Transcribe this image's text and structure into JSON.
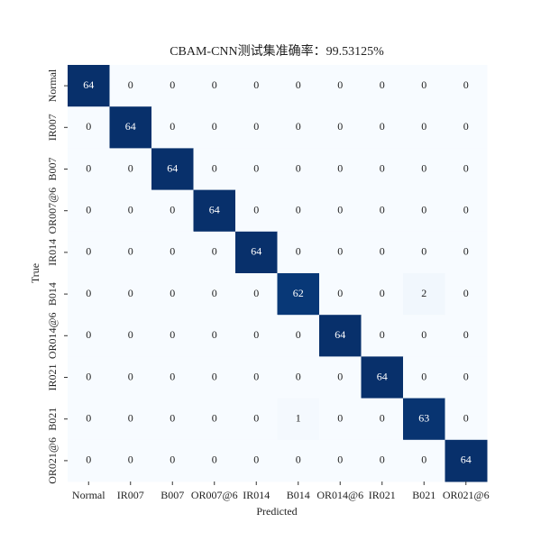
{
  "chart_data": {
    "type": "heatmap",
    "title": "CBAM-CNN测试集准确率：99.53125%",
    "x_label": "Predicted",
    "y_label": "True",
    "categories": [
      "Normal",
      "IR007",
      "B007",
      "OR007@6",
      "IR014",
      "B014",
      "OR014@6",
      "IR021",
      "B021",
      "OR021@6"
    ],
    "y_categories": [
      "Normal",
      "IR007",
      "B007",
      "OR007@6",
      "IR014",
      "B014",
      "OR014@6",
      "IR021",
      "B021",
      "OR021@6"
    ],
    "colormap": "Blues",
    "values": [
      [
        64,
        0,
        0,
        0,
        0,
        0,
        0,
        0,
        0,
        0
      ],
      [
        0,
        64,
        0,
        0,
        0,
        0,
        0,
        0,
        0,
        0
      ],
      [
        0,
        0,
        64,
        0,
        0,
        0,
        0,
        0,
        0,
        0
      ],
      [
        0,
        0,
        0,
        64,
        0,
        0,
        0,
        0,
        0,
        0
      ],
      [
        0,
        0,
        0,
        0,
        64,
        0,
        0,
        0,
        0,
        0
      ],
      [
        0,
        0,
        0,
        0,
        0,
        62,
        0,
        0,
        2,
        0
      ],
      [
        0,
        0,
        0,
        0,
        0,
        0,
        64,
        0,
        0,
        0
      ],
      [
        0,
        0,
        0,
        0,
        0,
        0,
        0,
        64,
        0,
        0
      ],
      [
        0,
        0,
        0,
        0,
        0,
        1,
        0,
        0,
        63,
        0
      ],
      [
        0,
        0,
        0,
        0,
        0,
        0,
        0,
        0,
        0,
        64
      ]
    ]
  }
}
